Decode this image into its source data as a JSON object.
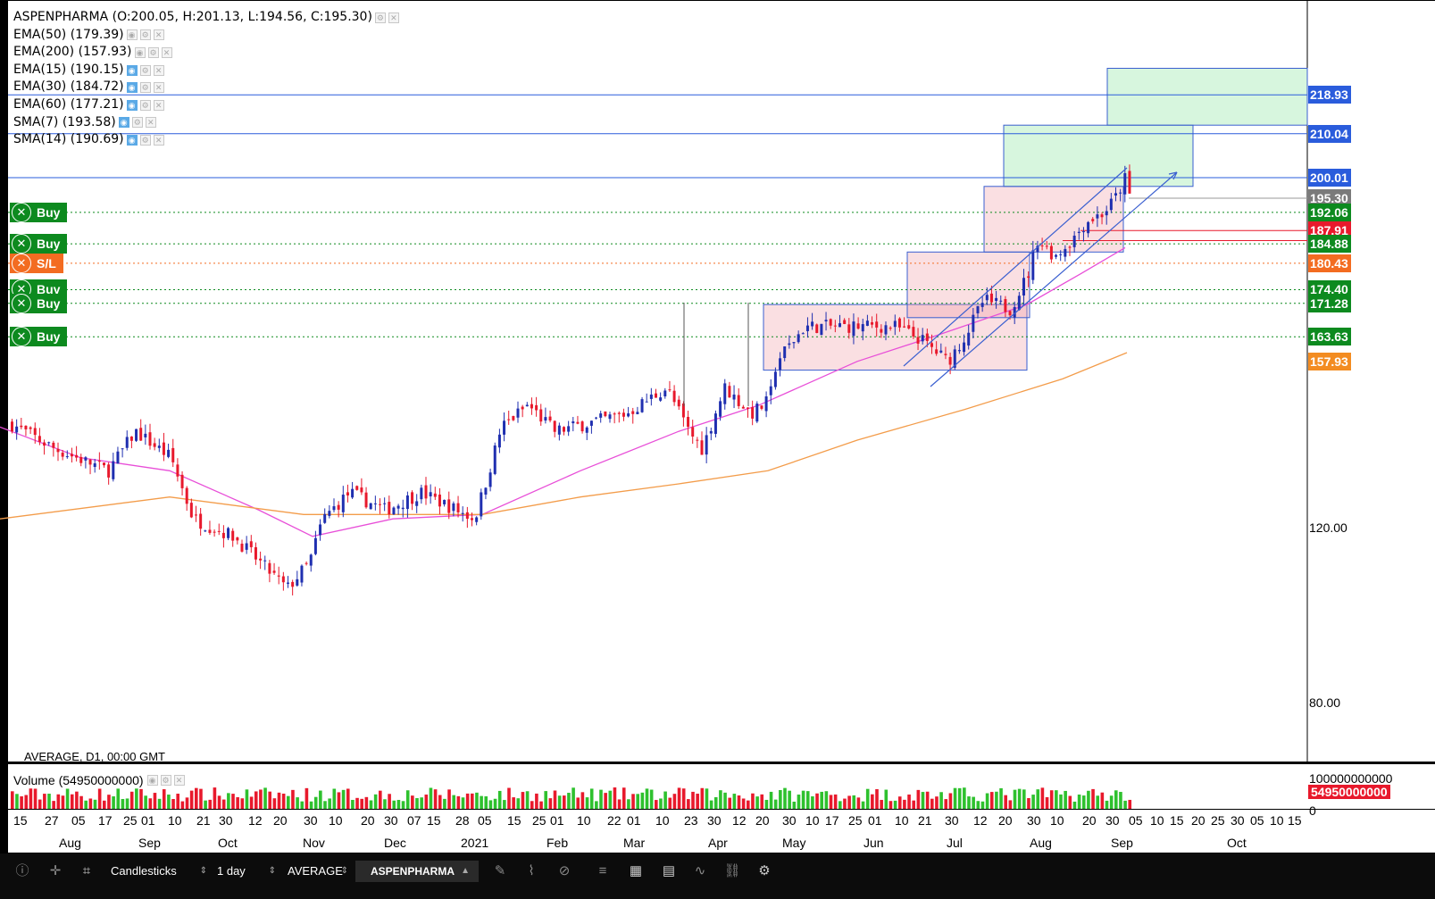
{
  "symbol_line": "ASPENPHARMA (O:200.05, H:201.13, L:194.56, C:195.30)",
  "indicators": [
    {
      "label": "EMA(50) (179.39)",
      "active": false
    },
    {
      "label": "EMA(200) (157.93)",
      "active": false
    },
    {
      "label": "EMA(15) (190.15)",
      "active": true
    },
    {
      "label": "EMA(30) (184.72)",
      "active": true
    },
    {
      "label": "EMA(60) (177.21)",
      "active": true
    },
    {
      "label": "SMA(7) (193.58)",
      "active": true
    },
    {
      "label": "SMA(14) (190.69)",
      "active": true
    }
  ],
  "orders": [
    {
      "label": "Buy",
      "price": "192.06",
      "kind": "buy"
    },
    {
      "label": "Buy",
      "price": "184.88",
      "kind": "buy"
    },
    {
      "label": "S/L",
      "price": "180.43",
      "kind": "sl"
    },
    {
      "label": "Buy",
      "price": "174.40",
      "kind": "buy"
    },
    {
      "label": "Buy",
      "price": "171.28",
      "kind": "buy"
    },
    {
      "label": "Buy",
      "price": "163.63",
      "kind": "buy"
    }
  ],
  "price_labels": [
    {
      "text": "218.93",
      "color": "#2a5cdc"
    },
    {
      "text": "210.04",
      "color": "#2a5cdc"
    },
    {
      "text": "200.01",
      "color": "#2a5cdc"
    },
    {
      "text": "195.30",
      "color": "#7a7a7a"
    },
    {
      "text": "192.06",
      "color": "#0d8a1f"
    },
    {
      "text": "187.91",
      "color": "#e8192c"
    },
    {
      "text": "184.88",
      "color": "#0d8a1f"
    },
    {
      "text": "180.43",
      "color": "#f36c21"
    },
    {
      "text": "174.40",
      "color": "#0d8a1f"
    },
    {
      "text": "171.28",
      "color": "#0d8a1f"
    },
    {
      "text": "163.63",
      "color": "#0d8a1f"
    },
    {
      "text": "157.93",
      "color": "#f38c21"
    }
  ],
  "status_text": "AVERAGE, D1, 00:00 GMT",
  "volume": {
    "label": "Volume (54950000000)",
    "axis_top": "100000000000",
    "current": "54950000000",
    "axis_zero": "0"
  },
  "toolbar": {
    "chart_type": "Candlesticks",
    "timeframe": "1 day",
    "account": "AVERAGE",
    "symbol": "ASPENPHARMA"
  },
  "colors": {
    "up": "#1f2fb0",
    "down": "#e8192c",
    "ema50": "#e84fd8",
    "ema200": "#f39c4a",
    "hline": "#2a5cdc",
    "buy": "#0d8a1f",
    "sl": "#f36c21"
  },
  "chart_data": {
    "type": "candlestick",
    "title": "ASPENPHARMA",
    "yaxis": {
      "ticks": [
        "120.00",
        "80.00"
      ],
      "range": [
        62,
        230
      ]
    },
    "x_day_ticks": [
      "15",
      "27",
      "05",
      "17",
      "25",
      "01",
      "10",
      "21",
      "30",
      "12",
      "20",
      "30",
      "10",
      "20",
      "30",
      "07",
      "15",
      "28",
      "05",
      "15",
      "25",
      "01",
      "10",
      "22",
      "01",
      "10",
      "23",
      "30",
      "12",
      "20",
      "30",
      "10",
      "17",
      "25",
      "01",
      "10",
      "21",
      "30",
      "12",
      "20",
      "30",
      "10",
      "20",
      "30",
      "05",
      "10",
      "15",
      "20",
      "25",
      "30",
      "05",
      "10",
      "15"
    ],
    "x_month_ticks": [
      "Aug",
      "Sep",
      "Oct",
      "Nov",
      "Dec",
      "2021",
      "Feb",
      "Mar",
      "Apr",
      "May",
      "Jun",
      "Jul",
      "Aug",
      "Sep",
      "Oct"
    ],
    "horizontal_levels": [
      218.93,
      210.04,
      200.01
    ],
    "order_levels": [
      192.06,
      184.88,
      180.43,
      174.4,
      171.28,
      163.63
    ],
    "last_close": 195.3,
    "series": [
      {
        "name": "EMA(50)",
        "points": [
          [
            0,
            143
          ],
          [
            90,
            136
          ],
          [
            190,
            133
          ],
          [
            290,
            124
          ],
          [
            350,
            118
          ],
          [
            440,
            122
          ],
          [
            540,
            123
          ],
          [
            650,
            133
          ],
          [
            760,
            142
          ],
          [
            850,
            148
          ],
          [
            960,
            158
          ],
          [
            1050,
            164
          ],
          [
            1150,
            171
          ],
          [
            1210,
            178
          ],
          [
            1260,
            184
          ]
        ]
      },
      {
        "name": "EMA(200)",
        "points": [
          [
            0,
            122
          ],
          [
            190,
            127
          ],
          [
            340,
            123
          ],
          [
            540,
            123
          ],
          [
            650,
            127
          ],
          [
            760,
            130
          ],
          [
            860,
            133
          ],
          [
            960,
            140
          ],
          [
            1080,
            147
          ],
          [
            1190,
            154
          ],
          [
            1262,
            160
          ]
        ]
      }
    ],
    "closes_anchor": [
      [
        0,
        145
      ],
      [
        60,
        138
      ],
      [
        120,
        133
      ],
      [
        150,
        142
      ],
      [
        190,
        136
      ],
      [
        215,
        122
      ],
      [
        260,
        118
      ],
      [
        300,
        110
      ],
      [
        320,
        106
      ],
      [
        345,
        112
      ],
      [
        360,
        122
      ],
      [
        390,
        128
      ],
      [
        430,
        124
      ],
      [
        470,
        128
      ],
      [
        500,
        125
      ],
      [
        530,
        122
      ],
      [
        545,
        132
      ],
      [
        560,
        143
      ],
      [
        590,
        148
      ],
      [
        620,
        142
      ],
      [
        660,
        144
      ],
      [
        700,
        146
      ],
      [
        745,
        152
      ],
      [
        770,
        142
      ],
      [
        785,
        138
      ],
      [
        810,
        152
      ],
      [
        840,
        146
      ],
      [
        860,
        149
      ],
      [
        868,
        158
      ],
      [
        900,
        166
      ],
      [
        950,
        166
      ],
      [
        1000,
        166
      ],
      [
        1030,
        163
      ],
      [
        1060,
        158
      ],
      [
        1080,
        164
      ],
      [
        1100,
        172
      ],
      [
        1130,
        170
      ],
      [
        1150,
        178
      ],
      [
        1160,
        186
      ],
      [
        1180,
        182
      ],
      [
        1200,
        186
      ],
      [
        1215,
        190
      ],
      [
        1235,
        192
      ],
      [
        1250,
        196
      ],
      [
        1258,
        200
      ],
      [
        1264,
        195.3
      ]
    ],
    "boxes": [
      {
        "x0": 855,
        "x1": 1150,
        "y0": 156,
        "y1": 171,
        "color": "pink"
      },
      {
        "x0": 1016,
        "x1": 1153,
        "y0": 168,
        "y1": 183,
        "color": "pink"
      },
      {
        "x0": 1102,
        "x1": 1258,
        "y0": 183,
        "y1": 198,
        "color": "pink"
      },
      {
        "x0": 1124,
        "x1": 1336,
        "y0": 198,
        "y1": 212,
        "color": "green"
      },
      {
        "x0": 1240,
        "x1": 1464,
        "y0": 212,
        "y1": 225,
        "color": "green"
      }
    ]
  }
}
